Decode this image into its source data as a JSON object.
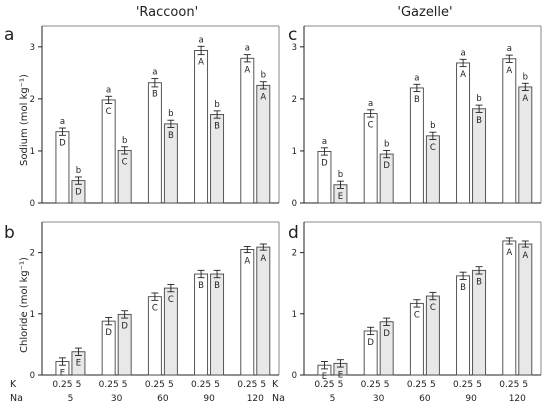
{
  "figure": {
    "cultivars": [
      "'Raccoon'",
      "'Gazelle'"
    ],
    "x_row_labels": {
      "k": "K",
      "na": "Na"
    },
    "k_levels": [
      "0.25",
      "5"
    ],
    "na_levels": [
      "5",
      "30",
      "60",
      "90",
      "120"
    ],
    "colors": {
      "k_0_25": "#ffffff",
      "k_5": "#e8e8e8",
      "edge": "#444444"
    }
  },
  "chart_data": [
    {
      "panel": "a",
      "cultivar": "'Raccoon'",
      "type": "bar",
      "ylabel": "Sodium (mol kg⁻¹)",
      "ylim": [
        0,
        3.4
      ],
      "yticks": [
        0,
        1,
        2,
        3
      ],
      "na": [
        5,
        30,
        60,
        90,
        120
      ],
      "k025": [
        1.37,
        1.98,
        2.31,
        2.93,
        2.78
      ],
      "k5": [
        0.43,
        1.01,
        1.52,
        1.7,
        2.26
      ],
      "err025": [
        0.07,
        0.07,
        0.08,
        0.08,
        0.07
      ],
      "err5": [
        0.07,
        0.07,
        0.07,
        0.07,
        0.07
      ],
      "upper025": [
        "a",
        "a",
        "a",
        "a",
        "a"
      ],
      "upper5": [
        "b",
        "b",
        "b",
        "b",
        "b"
      ],
      "lower025": [
        "D",
        "C",
        "B",
        "A",
        "A"
      ],
      "lower5": [
        "D",
        "C",
        "B",
        "B",
        "A"
      ]
    },
    {
      "panel": "c",
      "cultivar": "'Gazelle'",
      "type": "bar",
      "ylabel": "",
      "ylim": [
        0,
        3.4
      ],
      "yticks": [
        0,
        1,
        2,
        3
      ],
      "na": [
        5,
        30,
        60,
        90,
        120
      ],
      "k025": [
        0.99,
        1.72,
        2.21,
        2.69,
        2.77
      ],
      "k5": [
        0.35,
        0.94,
        1.29,
        1.81,
        2.23
      ],
      "err025": [
        0.07,
        0.07,
        0.07,
        0.07,
        0.07
      ],
      "err5": [
        0.07,
        0.07,
        0.07,
        0.07,
        0.07
      ],
      "upper025": [
        "a",
        "a",
        "a",
        "a",
        "a"
      ],
      "upper5": [
        "b",
        "b",
        "b",
        "b",
        "b"
      ],
      "lower025": [
        "D",
        "C",
        "B",
        "A",
        "A"
      ],
      "lower5": [
        "E",
        "D",
        "C",
        "B",
        "A"
      ]
    },
    {
      "panel": "b",
      "cultivar": "'Raccoon'",
      "type": "bar",
      "ylabel": "Chloride (mol kg⁻¹)",
      "ylim": [
        0,
        2.5
      ],
      "yticks": [
        0,
        1,
        2
      ],
      "na": [
        5,
        30,
        60,
        90,
        120
      ],
      "k025": [
        0.22,
        0.88,
        1.28,
        1.65,
        2.05
      ],
      "k5": [
        0.38,
        0.99,
        1.42,
        1.65,
        2.09
      ],
      "err025": [
        0.06,
        0.06,
        0.06,
        0.06,
        0.05
      ],
      "err5": [
        0.06,
        0.06,
        0.06,
        0.06,
        0.05
      ],
      "upper025": [],
      "upper5": [],
      "lower025": [
        "E",
        "D",
        "C",
        "B",
        "A"
      ],
      "lower5": [
        "E",
        "D",
        "C",
        "B",
        "A"
      ]
    },
    {
      "panel": "d",
      "cultivar": "'Gazelle'",
      "type": "bar",
      "ylabel": "",
      "ylim": [
        0,
        2.5
      ],
      "yticks": [
        0,
        1,
        2
      ],
      "na": [
        5,
        30,
        60,
        90,
        120
      ],
      "k025": [
        0.16,
        0.72,
        1.17,
        1.62,
        2.19
      ],
      "k5": [
        0.19,
        0.87,
        1.29,
        1.71,
        2.14
      ],
      "err025": [
        0.06,
        0.06,
        0.06,
        0.06,
        0.05
      ],
      "err5": [
        0.06,
        0.06,
        0.06,
        0.06,
        0.05
      ],
      "upper025": [],
      "upper5": [],
      "lower025": [
        "E",
        "D",
        "C",
        "B",
        "A"
      ],
      "lower5": [
        "E",
        "D",
        "C",
        "B",
        "A"
      ]
    }
  ]
}
